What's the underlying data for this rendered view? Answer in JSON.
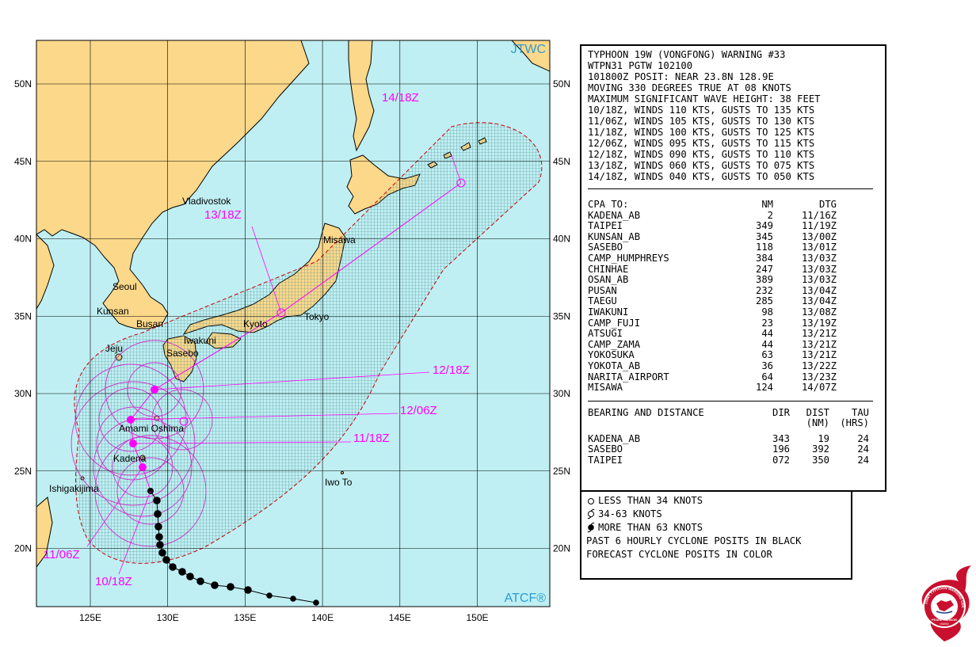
{
  "map": {
    "agency_label": "JTWC",
    "credit_label": "ATCF®",
    "lat_labels": [
      "50N",
      "45N",
      "40N",
      "35N",
      "30N",
      "25N",
      "20N"
    ],
    "lat_values": [
      50,
      45,
      40,
      35,
      30,
      25,
      20
    ],
    "lon_labels": [
      "125E",
      "130E",
      "135E",
      "140E",
      "145E",
      "150E"
    ],
    "lon_values": [
      125,
      130,
      135,
      140,
      145,
      150
    ],
    "places": [
      "Vladivostok",
      "Seoul",
      "Kunsan",
      "Busan",
      "Jeju",
      "Iwakuni",
      "Sasebo",
      "Kyoto",
      "Tokyo",
      "Misawa",
      "Amami Oshima",
      "Kadena",
      "Ishigakijima",
      "Iwo To"
    ],
    "forecast_labels": [
      "14/18Z",
      "13/18Z",
      "12/18Z",
      "12/06Z",
      "11/18Z",
      "11/06Z",
      "10/18Z"
    ],
    "colors": {
      "ocean": "#bfeff3",
      "land": "#fbd88a",
      "forecast": "#ff00ff",
      "past_track": "#000000",
      "danger_area": "#cc0000",
      "grid": "#000000"
    }
  },
  "warning": {
    "title": "TYPHOON 19W (VONGFONG) WARNING #33",
    "header_lines": [
      "WTPN31 PGTW 102100",
      "101800Z POSIT: NEAR 23.8N 128.9E",
      "MOVING 330 DEGREES TRUE AT 08 KNOTS",
      "MAXIMUM SIGNIFICANT WAVE HEIGHT: 38 FEET",
      "10/18Z, WINDS 110 KTS, GUSTS TO 135 KTS",
      "11/06Z, WINDS 105 KTS, GUSTS TO 130 KTS",
      "11/18Z, WINDS 100 KTS, GUSTS TO 125 KTS",
      "12/06Z, WINDS 095 KTS, GUSTS TO 115 KTS",
      "12/18Z, WINDS 090 KTS, GUSTS TO 110 KTS",
      "13/18Z, WINDS 060 KTS, GUSTS TO 075 KTS",
      "14/18Z, WINDS 040 KTS, GUSTS TO 050 KTS"
    ],
    "cpa_header": {
      "name": "CPA TO:",
      "nm": "NM",
      "dtg": "DTG"
    },
    "cpa": [
      {
        "name": "KADENA_AB",
        "nm": "2",
        "dtg": "11/16Z"
      },
      {
        "name": "TAIPEI",
        "nm": "349",
        "dtg": "11/19Z"
      },
      {
        "name": "KUNSAN_AB",
        "nm": "345",
        "dtg": "13/00Z"
      },
      {
        "name": "SASEBO",
        "nm": "118",
        "dtg": "13/01Z"
      },
      {
        "name": "CAMP_HUMPHREYS",
        "nm": "384",
        "dtg": "13/03Z"
      },
      {
        "name": "CHINHAE",
        "nm": "247",
        "dtg": "13/03Z"
      },
      {
        "name": "OSAN_AB",
        "nm": "389",
        "dtg": "13/03Z"
      },
      {
        "name": "PUSAN",
        "nm": "232",
        "dtg": "13/04Z"
      },
      {
        "name": "TAEGU",
        "nm": "285",
        "dtg": "13/04Z"
      },
      {
        "name": "IWAKUNI",
        "nm": "98",
        "dtg": "13/08Z"
      },
      {
        "name": "CAMP_FUJI",
        "nm": "23",
        "dtg": "13/19Z"
      },
      {
        "name": "ATSUGI",
        "nm": "44",
        "dtg": "13/21Z"
      },
      {
        "name": "CAMP_ZAMA",
        "nm": "44",
        "dtg": "13/21Z"
      },
      {
        "name": "YOKOSUKA",
        "nm": "63",
        "dtg": "13/21Z"
      },
      {
        "name": "YOKOTA_AB",
        "nm": "36",
        "dtg": "13/22Z"
      },
      {
        "name": "NARITA_AIRPORT",
        "nm": "64",
        "dtg": "13/23Z"
      },
      {
        "name": "MISAWA",
        "nm": "124",
        "dtg": "14/07Z"
      }
    ],
    "bearing_header": {
      "name": "BEARING AND DISTANCE",
      "dir": "DIR",
      "dist": "DIST",
      "tau": "TAU",
      "dist_unit": "(NM)",
      "tau_unit": "(HRS)"
    },
    "bearing": [
      {
        "name": "KADENA_AB",
        "dir": "343",
        "dist": "19",
        "tau": "24"
      },
      {
        "name": "SASEBO",
        "dir": "196",
        "dist": "392",
        "tau": "24"
      },
      {
        "name": "TAIPEI",
        "dir": "072",
        "dist": "350",
        "tau": "24"
      }
    ]
  },
  "legend": {
    "less_34": "LESS THAN 34 KNOTS",
    "from_34_63": "34-63 KNOTS",
    "more_63": "MORE THAN 63 KNOTS",
    "past_note": "PAST 6 HOURLY CYCLONE POSITS IN BLACK",
    "forecast_note": "FORECAST CYCLONE POSITS IN COLOR"
  },
  "logo": {
    "ring_text": "JOINT TYPHOON WARNING CENTER",
    "bottom_text": "PEARL HARBOR",
    "sub_text": "HAWAII"
  }
}
